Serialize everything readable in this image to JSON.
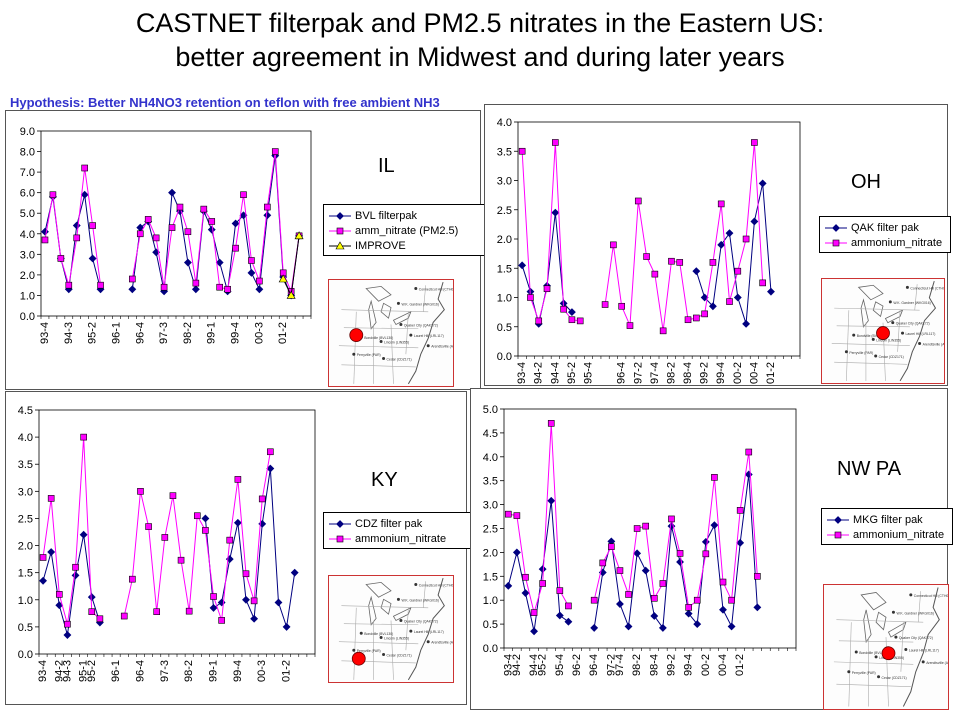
{
  "title_line1": "CASTNET filterpak and PM2.5 nitrates in the Eastern US:",
  "title_line2": "better agreement in Midwest and during later years",
  "hypothesis": "Hypothesis: Better NH4NO3 retention on teflon with free ambient NH3",
  "colors": {
    "filterpak": "#000080",
    "nitrate": "#ff00ff",
    "improve": "#ffff00",
    "site_marker": "#ff0000"
  },
  "map_labels": [
    "Connecticut Hill (CTH010)",
    "W.K. Gardner (WKG016)",
    "Quaker City (QAK172)",
    "Laurel Hill (LRL117)",
    "Lincoln (LIN355)",
    "Cedar (CDZ171)",
    "Arendtsville (ARE)",
    "Bondville (BVL130)",
    "Perryville (PAR)"
  ],
  "chart_data": [
    {
      "type": "line",
      "state_label": "IL",
      "ylim": [
        0,
        9
      ],
      "yticks": [
        "0.0",
        "1.0",
        "2.0",
        "3.0",
        "4.0",
        "5.0",
        "6.0",
        "7.0",
        "8.0",
        "9.0"
      ],
      "ystep": 1,
      "n": 34,
      "xticks": [
        {
          "i": 0,
          "label": "93-4"
        },
        {
          "i": 3,
          "label": "94-3"
        },
        {
          "i": 6,
          "label": "95-2"
        },
        {
          "i": 9,
          "label": "96-1"
        },
        {
          "i": 12,
          "label": "96-4"
        },
        {
          "i": 15,
          "label": "97-3"
        },
        {
          "i": 18,
          "label": "98-2"
        },
        {
          "i": 21,
          "label": "99-1"
        },
        {
          "i": 24,
          "label": "99-4"
        },
        {
          "i": 27,
          "label": "00-3"
        },
        {
          "i": 30,
          "label": "01-2"
        }
      ],
      "series": [
        {
          "name": "BVL filterpak",
          "marker": "diamond",
          "values": [
            4.1,
            5.8,
            2.8,
            1.3,
            4.4,
            5.9,
            2.8,
            1.3,
            null,
            null,
            null,
            1.3,
            4.3,
            4.6,
            3.1,
            1.2,
            6.0,
            5.1,
            2.6,
            1.3,
            5.1,
            4.2,
            2.6,
            1.2,
            4.5,
            4.9,
            2.1,
            1.3,
            4.9,
            7.8,
            1.9,
            1.0,
            3.9,
            null
          ]
        },
        {
          "name": "amm_nitrate (PM2.5)",
          "marker": "square",
          "values": [
            3.7,
            5.9,
            2.8,
            1.5,
            3.8,
            7.2,
            4.4,
            1.5,
            null,
            null,
            null,
            1.8,
            4.0,
            4.7,
            3.8,
            1.4,
            4.3,
            5.3,
            4.1,
            1.6,
            5.2,
            4.6,
            1.4,
            1.3,
            3.3,
            5.9,
            2.7,
            1.7,
            5.3,
            8.0,
            2.1,
            1.2,
            3.9,
            null
          ]
        },
        {
          "name": "IMPROVE",
          "marker": "triangle",
          "values": [
            null,
            null,
            null,
            null,
            null,
            null,
            null,
            null,
            null,
            null,
            null,
            null,
            null,
            null,
            null,
            null,
            null,
            null,
            null,
            null,
            null,
            null,
            null,
            null,
            null,
            null,
            null,
            null,
            null,
            null,
            1.8,
            1.0,
            3.9,
            null
          ]
        }
      ]
    },
    {
      "type": "line",
      "state_label": "OH",
      "ylim": [
        0,
        4
      ],
      "yticks": [
        "0.0",
        "0.5",
        "1.0",
        "1.5",
        "2.0",
        "2.5",
        "3.0",
        "3.5",
        "4.0"
      ],
      "ystep": 0.5,
      "n": 34,
      "xticks": [
        {
          "i": 0,
          "label": "93-4"
        },
        {
          "i": 2,
          "label": "94-2"
        },
        {
          "i": 4,
          "label": "94-4"
        },
        {
          "i": 6,
          "label": "95-2"
        },
        {
          "i": 8,
          "label": "95-4"
        },
        {
          "i": 12,
          "label": "96-4"
        },
        {
          "i": 14,
          "label": "97-2"
        },
        {
          "i": 16,
          "label": "97-4"
        },
        {
          "i": 18,
          "label": "98-2"
        },
        {
          "i": 20,
          "label": "98-4"
        },
        {
          "i": 22,
          "label": "99-2"
        },
        {
          "i": 24,
          "label": "99-4"
        },
        {
          "i": 26,
          "label": "00-2"
        },
        {
          "i": 28,
          "label": "00-4"
        },
        {
          "i": 30,
          "label": "01-2"
        }
      ],
      "series": [
        {
          "name": "QAK filter pak",
          "marker": "diamond",
          "values": [
            1.55,
            1.1,
            0.55,
            1.2,
            2.45,
            0.9,
            0.75,
            null,
            null,
            null,
            null,
            null,
            null,
            null,
            null,
            null,
            null,
            null,
            null,
            null,
            null,
            1.45,
            1.0,
            0.85,
            1.9,
            2.1,
            1.0,
            0.55,
            2.3,
            2.95,
            1.1,
            null,
            null,
            null
          ]
        },
        {
          "name": "ammonium_nitrate",
          "marker": "square",
          "values": [
            3.5,
            1.0,
            0.6,
            1.15,
            3.65,
            0.8,
            0.62,
            0.6,
            null,
            null,
            0.88,
            1.9,
            0.85,
            0.52,
            2.65,
            1.7,
            1.4,
            0.43,
            1.62,
            1.6,
            0.62,
            0.65,
            0.72,
            1.6,
            2.6,
            0.93,
            1.45,
            2.0,
            3.65,
            1.25,
            null,
            null,
            null,
            null
          ]
        }
      ]
    },
    {
      "type": "line",
      "state_label": "KY",
      "ylim": [
        0,
        4.5
      ],
      "yticks": [
        "0.0",
        "0.5",
        "1.0",
        "1.5",
        "2.0",
        "2.5",
        "3.0",
        "3.5",
        "4.0",
        "4.5"
      ],
      "ystep": 0.5,
      "n": 34,
      "xticks": [
        {
          "i": 0,
          "label": "93-4"
        },
        {
          "i": 2,
          "label": "94-2"
        },
        {
          "i": 3,
          "label": "94-3"
        },
        {
          "i": 5,
          "label": "95-1"
        },
        {
          "i": 6,
          "label": "95-2"
        },
        {
          "i": 9,
          "label": "96-1"
        },
        {
          "i": 12,
          "label": "96-4"
        },
        {
          "i": 15,
          "label": "97-3"
        },
        {
          "i": 18,
          "label": "98-2"
        },
        {
          "i": 21,
          "label": "99-1"
        },
        {
          "i": 24,
          "label": "99-4"
        },
        {
          "i": 27,
          "label": "00-3"
        },
        {
          "i": 30,
          "label": "01-2"
        }
      ],
      "series": [
        {
          "name": "CDZ filter pak",
          "marker": "diamond",
          "values": [
            1.35,
            1.88,
            0.9,
            0.35,
            1.45,
            2.2,
            1.05,
            0.58,
            null,
            null,
            null,
            null,
            null,
            null,
            null,
            null,
            null,
            null,
            null,
            null,
            2.5,
            0.85,
            0.95,
            1.75,
            2.42,
            1.0,
            0.65,
            2.4,
            3.42,
            0.95,
            0.5,
            1.5,
            null,
            null
          ]
        },
        {
          "name": "ammonium_nitrate",
          "marker": "square",
          "values": [
            1.78,
            2.87,
            1.1,
            0.55,
            1.6,
            4.0,
            0.78,
            0.65,
            null,
            null,
            0.7,
            1.38,
            3.0,
            2.35,
            0.78,
            2.15,
            2.92,
            1.73,
            0.79,
            2.55,
            2.28,
            1.06,
            0.62,
            2.1,
            3.22,
            1.48,
            0.98,
            2.86,
            3.73,
            null,
            null,
            null,
            null,
            null
          ]
        }
      ]
    },
    {
      "type": "line",
      "state_label": "NW PA",
      "ylim": [
        0,
        5
      ],
      "yticks": [
        "0.0",
        "0.5",
        "1.0",
        "1.5",
        "2.0",
        "2.5",
        "3.0",
        "3.5",
        "4.0",
        "4.5",
        "5.0"
      ],
      "ystep": 0.5,
      "n": 34,
      "xticks": [
        {
          "i": 0,
          "label": "93-4"
        },
        {
          "i": 1,
          "label": "94-2"
        },
        {
          "i": 3,
          "label": "94-4"
        },
        {
          "i": 4,
          "label": "95-2"
        },
        {
          "i": 6,
          "label": "95-4"
        },
        {
          "i": 8,
          "label": "96-2"
        },
        {
          "i": 10,
          "label": "96-4"
        },
        {
          "i": 12,
          "label": "97-2"
        },
        {
          "i": 13,
          "label": "97-4"
        },
        {
          "i": 15,
          "label": "98-2"
        },
        {
          "i": 17,
          "label": "98-4"
        },
        {
          "i": 19,
          "label": "99-2"
        },
        {
          "i": 21,
          "label": "99-4"
        },
        {
          "i": 23,
          "label": "00-2"
        },
        {
          "i": 25,
          "label": "00-4"
        },
        {
          "i": 27,
          "label": "01-2"
        }
      ],
      "series": [
        {
          "name": "MKG filter pak",
          "marker": "diamond",
          "values": [
            1.3,
            2.0,
            1.15,
            0.35,
            1.65,
            3.08,
            0.68,
            0.55,
            null,
            null,
            0.42,
            1.58,
            2.23,
            0.92,
            0.45,
            1.98,
            1.62,
            0.67,
            0.42,
            2.55,
            1.8,
            0.72,
            0.5,
            2.22,
            2.57,
            0.8,
            0.45,
            2.2,
            3.63,
            0.85,
            null,
            null,
            null,
            null
          ]
        },
        {
          "name": "ammonium_nitrate",
          "marker": "square",
          "values": [
            2.8,
            2.77,
            1.48,
            0.74,
            1.35,
            4.7,
            1.2,
            0.88,
            null,
            null,
            1.0,
            1.78,
            2.12,
            1.62,
            1.12,
            2.5,
            2.55,
            1.04,
            1.35,
            2.7,
            1.98,
            0.85,
            1.0,
            1.97,
            3.57,
            1.38,
            1.0,
            2.88,
            4.1,
            1.5,
            null,
            null,
            null,
            null
          ]
        }
      ]
    }
  ]
}
